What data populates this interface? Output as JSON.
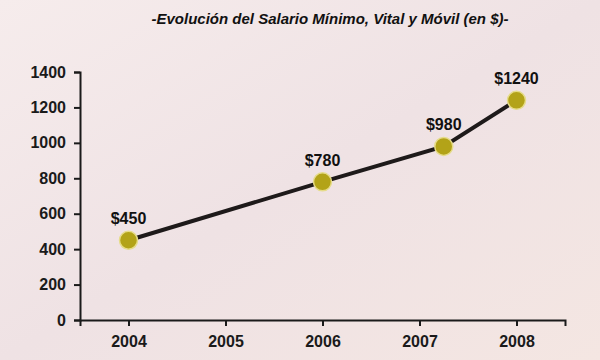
{
  "chart_data": {
    "type": "line",
    "title": "-Evolución del Salario Mínimo, Vital y Móvil (en $)-",
    "x": [
      2004,
      2006,
      2007.25,
      2008
    ],
    "values": [
      450,
      780,
      980,
      1240
    ],
    "value_labels": [
      "$450",
      "$780",
      "$980",
      "$1240"
    ],
    "color": "#1e1a1a",
    "marker": "circle",
    "line_style": "solid",
    "xlim": [
      2003.5,
      2008.5
    ],
    "xticks": [
      2004,
      2005,
      2006,
      2007,
      2008
    ],
    "ylim": [
      0,
      1400
    ],
    "yticks": [
      0,
      200,
      400,
      600,
      800,
      1000,
      1200,
      1400
    ],
    "grid": false,
    "data_labels": true
  }
}
